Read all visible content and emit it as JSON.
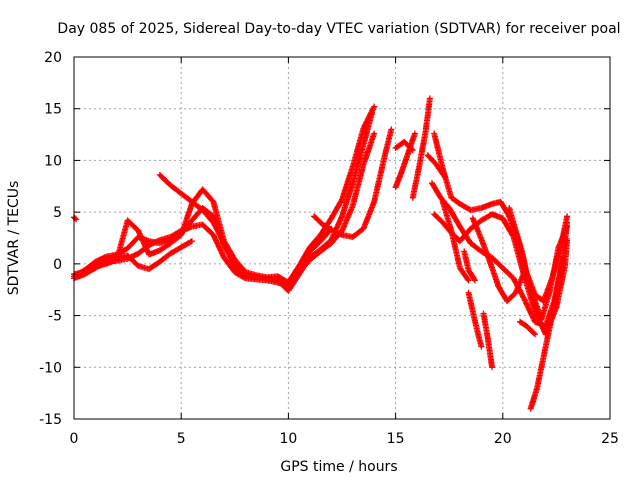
{
  "chart_data": {
    "type": "scatter",
    "title": "Day 085 of 2025, Sidereal Day-to-day VTEC variation (SDTVAR) for receiver poal",
    "xlabel": "GPS time / hours",
    "ylabel": "SDTVAR / TECUs",
    "xlim": [
      0,
      25
    ],
    "ylim": [
      -15,
      20
    ],
    "xticks": [
      0,
      5,
      10,
      15,
      20,
      25
    ],
    "yticks": [
      -15,
      -10,
      -5,
      0,
      5,
      10,
      15,
      20
    ],
    "grid": true,
    "marker": "+",
    "color": "#ff0000",
    "series": [
      {
        "name": "trace-1",
        "points": [
          [
            0,
            -1.4
          ],
          [
            0.5,
            -1.0
          ],
          [
            1,
            -0.4
          ],
          [
            1.5,
            0.2
          ],
          [
            2,
            0.3
          ],
          [
            2.5,
            0.5
          ],
          [
            3,
            1.0
          ],
          [
            3.5,
            1.8
          ],
          [
            4,
            2.3
          ],
          [
            4.5,
            2.6
          ],
          [
            5,
            3.2
          ],
          [
            5.5,
            3.6
          ],
          [
            6,
            3.8
          ],
          [
            6.5,
            2.8
          ],
          [
            7,
            0.6
          ],
          [
            7.5,
            -0.8
          ],
          [
            8,
            -1.4
          ],
          [
            8.5,
            -1.5
          ],
          [
            9,
            -1.6
          ],
          [
            9.5,
            -1.8
          ],
          [
            10,
            -2.2
          ],
          [
            10.5,
            -0.6
          ],
          [
            11,
            1.2
          ],
          [
            11.5,
            2.2
          ],
          [
            12,
            3.4
          ]
        ]
      },
      {
        "name": "trace-2",
        "points": [
          [
            0,
            -1.2
          ],
          [
            0.5,
            -0.6
          ],
          [
            1,
            0.2
          ],
          [
            1.5,
            0.7
          ],
          [
            2,
            0.9
          ],
          [
            2.5,
            1.5
          ],
          [
            3,
            2.6
          ],
          [
            3.5,
            2.2
          ],
          [
            4,
            2.0
          ],
          [
            4.5,
            2.3
          ],
          [
            5,
            2.9
          ],
          [
            5.5,
            4.2
          ],
          [
            6,
            5.4
          ],
          [
            6.5,
            4.6
          ],
          [
            7,
            1.8
          ],
          [
            7.5,
            -0.2
          ],
          [
            8,
            -1.2
          ],
          [
            8.5,
            -1.3
          ],
          [
            9,
            -1.4
          ],
          [
            9.5,
            -1.6
          ],
          [
            10,
            -2.6
          ],
          [
            10.5,
            -1.0
          ],
          [
            11,
            0.6
          ],
          [
            11.5,
            1.4
          ],
          [
            12,
            2.3
          ],
          [
            12.5,
            4.6
          ],
          [
            13,
            7.8
          ],
          [
            13.5,
            11.5
          ],
          [
            13.9,
            14.6
          ]
        ]
      },
      {
        "name": "trace-3",
        "points": [
          [
            0,
            -1.0
          ],
          [
            0.5,
            -0.8
          ],
          [
            1,
            -0.3
          ],
          [
            1.5,
            0.0
          ],
          [
            2,
            0.4
          ],
          [
            2.5,
            4.2
          ],
          [
            3,
            3.2
          ],
          [
            3.5,
            0.9
          ],
          [
            4,
            1.3
          ],
          [
            4.5,
            2.0
          ],
          [
            5,
            2.8
          ],
          [
            5.5,
            5.8
          ],
          [
            6,
            7.2
          ],
          [
            6.5,
            6.0
          ],
          [
            7,
            2.2
          ],
          [
            7.5,
            0.4
          ],
          [
            8,
            -0.8
          ],
          [
            8.5,
            -1.1
          ],
          [
            9,
            -1.3
          ],
          [
            9.5,
            -1.2
          ],
          [
            10,
            -1.8
          ],
          [
            10.5,
            -0.2
          ],
          [
            11,
            1.6
          ],
          [
            11.5,
            2.8
          ],
          [
            12,
            4.4
          ],
          [
            12.5,
            6.2
          ],
          [
            13,
            9.4
          ],
          [
            13.5,
            13.1
          ],
          [
            14,
            15.2
          ]
        ]
      },
      {
        "name": "trace-4",
        "points": [
          [
            4,
            8.6
          ],
          [
            4.5,
            7.6
          ],
          [
            5,
            6.8
          ],
          [
            5.5,
            6.0
          ],
          [
            6,
            5.2
          ],
          [
            6.5,
            4.0
          ],
          [
            7,
            2.0
          ],
          [
            7.5,
            0.2
          ],
          [
            8,
            -1.0
          ],
          [
            8.5,
            -1.3
          ],
          [
            9,
            -1.4
          ],
          [
            9.5,
            -1.5
          ],
          [
            10,
            -2.4
          ],
          [
            10.5,
            -0.8
          ],
          [
            11,
            0.4
          ],
          [
            11.5,
            1.2
          ],
          [
            12,
            2.0
          ],
          [
            12.5,
            3.2
          ],
          [
            13,
            5.6
          ],
          [
            13.5,
            9.6
          ],
          [
            14,
            12.6
          ]
        ]
      },
      {
        "name": "trace-5",
        "points": [
          [
            0.6,
            -0.7
          ],
          [
            1,
            -0.2
          ],
          [
            1.5,
            0.5
          ],
          [
            2,
            0.6
          ],
          [
            2.5,
            0.8
          ],
          [
            3,
            -0.2
          ],
          [
            3.5,
            -0.5
          ],
          [
            4,
            0.2
          ],
          [
            4.5,
            1.0
          ],
          [
            5,
            1.6
          ],
          [
            5.5,
            2.2
          ]
        ]
      },
      {
        "name": "trace-6",
        "points": [
          [
            11.2,
            4.6
          ],
          [
            11.6,
            3.8
          ],
          [
            12,
            3.3
          ],
          [
            12.5,
            2.8
          ],
          [
            13,
            2.6
          ],
          [
            13.5,
            3.4
          ],
          [
            14,
            6.0
          ],
          [
            14.5,
            10.5
          ],
          [
            14.8,
            13.0
          ]
        ]
      },
      {
        "name": "trace-7",
        "points": [
          [
            15,
            7.4
          ],
          [
            15.3,
            9.0
          ],
          [
            15.6,
            10.8
          ],
          [
            15.9,
            12.6
          ]
        ]
      },
      {
        "name": "trace-8",
        "points": [
          [
            15.8,
            6.4
          ],
          [
            16.1,
            9.4
          ],
          [
            16.4,
            12.8
          ],
          [
            16.6,
            16.0
          ]
        ]
      },
      {
        "name": "trace-9",
        "points": [
          [
            15,
            11.2
          ],
          [
            15.4,
            11.8
          ],
          [
            15.8,
            11.0
          ]
        ]
      },
      {
        "name": "trace-10",
        "points": [
          [
            16.5,
            10.5
          ],
          [
            16.9,
            9.6
          ],
          [
            17.3,
            8.4
          ]
        ]
      },
      {
        "name": "trace-11",
        "points": [
          [
            16.8,
            12.6
          ],
          [
            17.2,
            9.2
          ],
          [
            17.6,
            6.4
          ],
          [
            18,
            5.8
          ],
          [
            18.5,
            5.2
          ],
          [
            19,
            5.4
          ],
          [
            19.5,
            5.8
          ],
          [
            19.9,
            6.0
          ],
          [
            20.3,
            4.6
          ],
          [
            20.7,
            2.4
          ],
          [
            21.1,
            -0.8
          ],
          [
            21.5,
            -3.0
          ],
          [
            21.9,
            -3.6
          ],
          [
            22.3,
            -1.4
          ],
          [
            22.7,
            1.6
          ],
          [
            23,
            4.6
          ]
        ]
      },
      {
        "name": "trace-12",
        "points": [
          [
            16.7,
            7.8
          ],
          [
            17.1,
            6.4
          ],
          [
            17.5,
            5.4
          ],
          [
            18,
            3.6
          ],
          [
            18.5,
            2.0
          ],
          [
            19,
            1.2
          ],
          [
            19.5,
            0.6
          ],
          [
            20,
            -0.4
          ],
          [
            20.5,
            -1.4
          ],
          [
            21,
            -3.4
          ],
          [
            21.5,
            -5.6
          ],
          [
            22,
            -6.0
          ],
          [
            22.4,
            -3.6
          ],
          [
            22.8,
            0.4
          ],
          [
            23,
            4.0
          ]
        ]
      },
      {
        "name": "trace-13",
        "points": [
          [
            16.8,
            4.8
          ],
          [
            17.2,
            4.0
          ],
          [
            17.6,
            3.0
          ],
          [
            18,
            2.2
          ],
          [
            18.5,
            3.4
          ],
          [
            19,
            4.2
          ],
          [
            19.5,
            4.8
          ],
          [
            20,
            4.4
          ],
          [
            20.5,
            2.6
          ],
          [
            21,
            -1.2
          ],
          [
            21.5,
            -4.6
          ],
          [
            22,
            -6.8
          ],
          [
            22.5,
            -4.2
          ],
          [
            22.9,
            -0.2
          ],
          [
            23,
            2.4
          ]
        ]
      },
      {
        "name": "trace-14",
        "points": [
          [
            17.2,
            6.0
          ],
          [
            17.6,
            3.2
          ],
          [
            18,
            -0.4
          ],
          [
            18.4,
            -1.6
          ]
        ]
      },
      {
        "name": "trace-15",
        "points": [
          [
            18.2,
            1.2
          ],
          [
            18.4,
            -0.6
          ],
          [
            18.7,
            -1.6
          ]
        ]
      },
      {
        "name": "trace-16",
        "points": [
          [
            18.6,
            4.4
          ],
          [
            19,
            2.4
          ],
          [
            19.4,
            0.2
          ],
          [
            19.8,
            -2.2
          ],
          [
            20.2,
            -3.6
          ],
          [
            20.6,
            -2.8
          ],
          [
            21,
            -0.8
          ],
          [
            21.4,
            -3.0
          ],
          [
            21.8,
            -5.4
          ],
          [
            22.2,
            -2.6
          ],
          [
            22.6,
            1.6
          ],
          [
            23,
            3.6
          ]
        ]
      },
      {
        "name": "trace-17",
        "points": [
          [
            18.4,
            -2.8
          ],
          [
            18.6,
            -4.6
          ],
          [
            18.8,
            -6.4
          ],
          [
            19,
            -8.0
          ]
        ]
      },
      {
        "name": "trace-18",
        "points": [
          [
            19.1,
            -4.8
          ],
          [
            19.3,
            -7.2
          ],
          [
            19.5,
            -10.0
          ]
        ]
      },
      {
        "name": "trace-19",
        "points": [
          [
            20.3,
            5.4
          ],
          [
            20.6,
            3.2
          ],
          [
            20.9,
            1.2
          ],
          [
            21.2,
            -1.8
          ]
        ]
      },
      {
        "name": "trace-20",
        "points": [
          [
            20.8,
            -5.6
          ],
          [
            21.1,
            -6.0
          ],
          [
            21.5,
            -6.8
          ]
        ]
      },
      {
        "name": "trace-21",
        "points": [
          [
            21.3,
            -14.0
          ],
          [
            21.6,
            -12.0
          ],
          [
            21.9,
            -9.0
          ],
          [
            22.2,
            -6.0
          ],
          [
            22.5,
            -2.8
          ],
          [
            22.8,
            0.6
          ]
        ]
      },
      {
        "name": "trace-22",
        "points": [
          [
            0,
            4.5
          ],
          [
            0.1,
            4.3
          ]
        ]
      }
    ]
  }
}
